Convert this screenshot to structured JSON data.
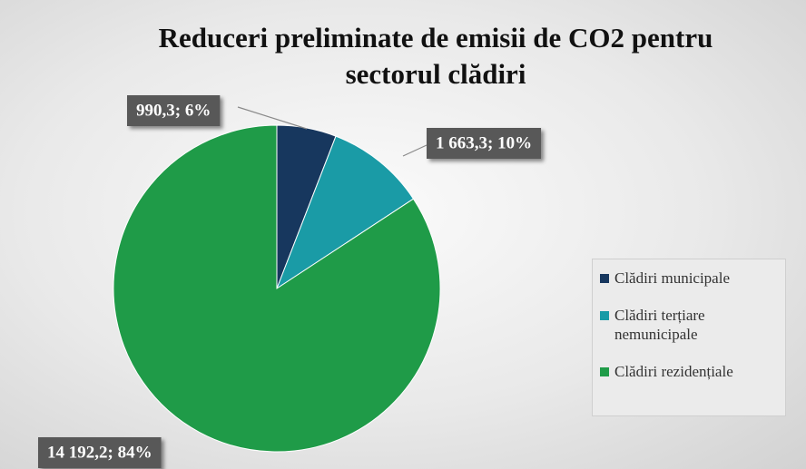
{
  "chart_data": {
    "type": "pie",
    "title": "Reduceri preliminate de emisii de CO2 pentru sectorul clădiri",
    "categories": [
      "Clădiri municipale",
      "Clădiri terțiare nemunicipale",
      "Clădiri rezidențiale"
    ],
    "values": [
      990.3,
      1663.3,
      14192.2
    ],
    "value_labels": [
      "990,3; 6%",
      "1 663,3; 10%",
      "14 192,2; 84%"
    ],
    "colors": [
      "#17375e",
      "#1a9ba6",
      "#1f9b48"
    ],
    "legend": "right"
  }
}
